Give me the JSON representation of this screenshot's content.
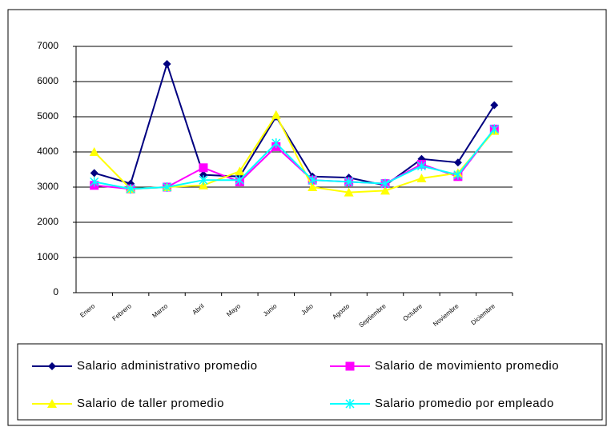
{
  "chart_data": {
    "type": "line",
    "categories": [
      "Enero",
      "Febrero",
      "Marzo",
      "Abril",
      "Mayo",
      "Junio",
      "Julio",
      "Agosto",
      "Septiembre",
      "Octubre",
      "Noviembre",
      "Diciembre"
    ],
    "series": [
      {
        "name": "Salario administrativo promedio",
        "color": "#000080",
        "marker": "diamond",
        "values": [
          3400,
          3100,
          6500,
          3350,
          3300,
          5000,
          3300,
          3270,
          3050,
          3800,
          3700,
          5330
        ]
      },
      {
        "name": "Salario de movimiento promedio",
        "color": "#ff00ff",
        "marker": "square",
        "values": [
          3050,
          2950,
          3000,
          3550,
          3150,
          4150,
          3200,
          3150,
          3100,
          3650,
          3300,
          4650
        ]
      },
      {
        "name": "Salario de taller promedio",
        "color": "#ffff00",
        "marker": "triangle",
        "values": [
          4000,
          2950,
          3000,
          3050,
          3450,
          5050,
          3000,
          2850,
          2900,
          3250,
          3400,
          4600
        ]
      },
      {
        "name": "Salario promedio por empleado",
        "color": "#00ffff",
        "marker": "star",
        "values": [
          3150,
          2950,
          3000,
          3200,
          3200,
          4250,
          3200,
          3150,
          3100,
          3600,
          3350,
          4650
        ]
      }
    ],
    "ylim": [
      0,
      7000
    ],
    "yticks": [
      0,
      1000,
      2000,
      3000,
      4000,
      5000,
      6000,
      7000
    ],
    "grid": true,
    "legend": "bottom"
  }
}
